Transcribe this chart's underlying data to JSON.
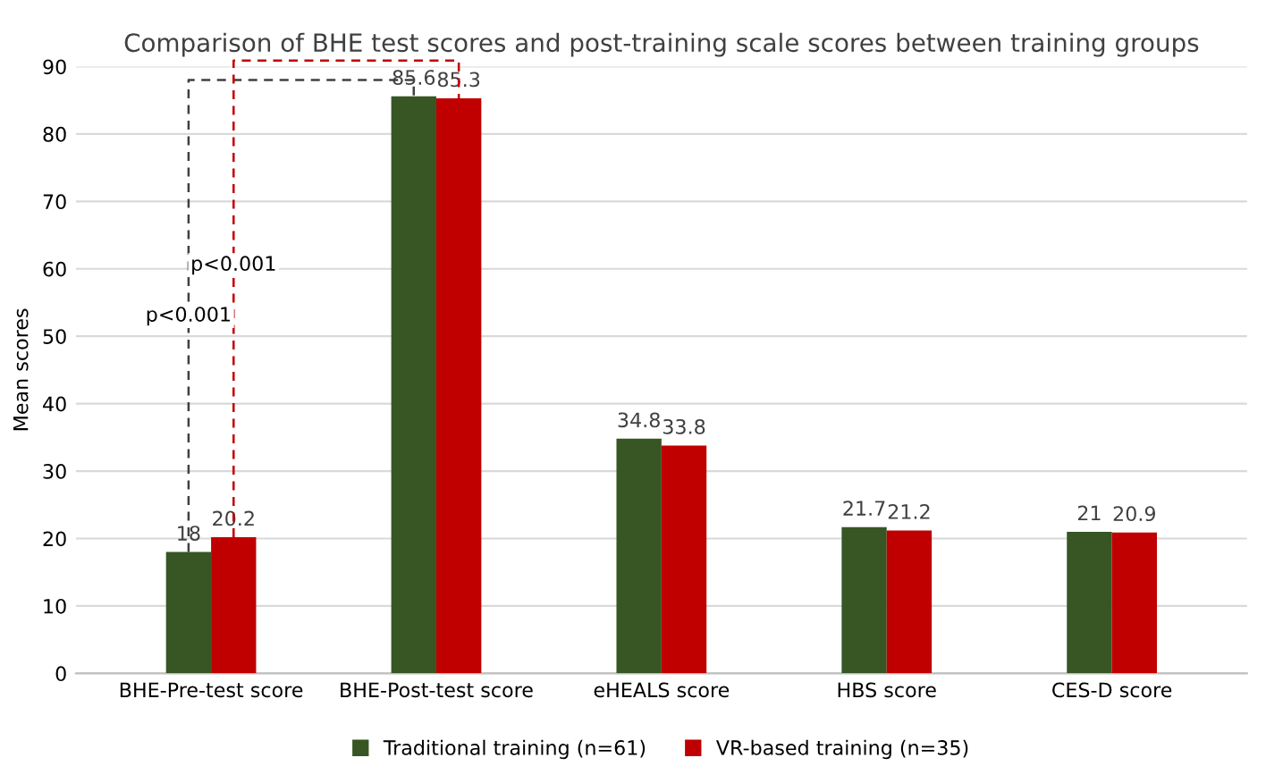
{
  "chart_data": {
    "type": "bar",
    "title": "Comparison of BHE test scores and post-training scale scores between training groups",
    "ylabel": "Mean scores",
    "categories": [
      "BHE-Pre-test score",
      "BHE-Post-test score",
      "eHEALS score",
      "HBS score",
      "CES-D score"
    ],
    "series": [
      {
        "name": "Traditional training (n=61)",
        "color": "#375623",
        "values": [
          18,
          85.6,
          34.8,
          21.7,
          21
        ]
      },
      {
        "name": "VR-based training (n=35)",
        "color": "#c00000",
        "values": [
          20.2,
          85.3,
          33.8,
          21.2,
          20.9
        ]
      }
    ],
    "ylim": [
      0,
      90
    ],
    "yticks": [
      0,
      10,
      20,
      30,
      40,
      50,
      60,
      70,
      80,
      90
    ],
    "grid": "y",
    "legend": "bottom",
    "data_labels": true,
    "annotations": [
      "p<0.001",
      "p<0.001"
    ]
  }
}
